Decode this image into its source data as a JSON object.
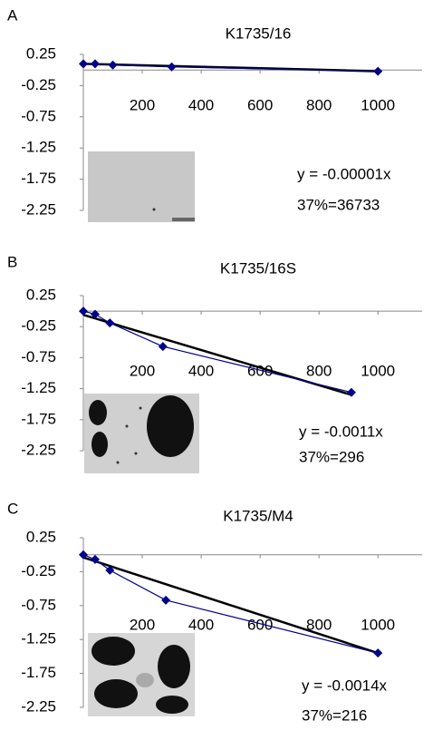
{
  "chart_data": [
    {
      "type": "line",
      "panel_label": "A",
      "title": "K1735/16",
      "x": [
        0,
        40,
        100,
        300,
        1000
      ],
      "series": [
        {
          "color": "#00008b",
          "values": [
            0.1,
            0.1,
            0.08,
            0.05,
            -0.02
          ]
        }
      ],
      "trendline": {
        "color": "#000000",
        "x": [
          0,
          1000
        ],
        "values": [
          0.1,
          -0.02
        ]
      },
      "annotations": [
        "y = -0.00001x",
        "37%=36733"
      ],
      "xlim": [
        0,
        1150
      ],
      "xticks": [
        200,
        400,
        600,
        800,
        1000
      ],
      "ylim": [
        -2.25,
        0.25
      ],
      "yticks": [
        0.25,
        -0.25,
        -0.75,
        -1.25,
        -1.75,
        -2.25
      ]
    },
    {
      "type": "line",
      "panel_label": "B",
      "title": "K1735/16S",
      "x": [
        0,
        40,
        90,
        270,
        910
      ],
      "series": [
        {
          "color": "#00008b",
          "values": [
            0.0,
            -0.05,
            -0.19,
            -0.57,
            -1.31
          ]
        }
      ],
      "trendline": {
        "color": "#000000",
        "x": [
          0,
          910
        ],
        "values": [
          -0.06,
          -1.35
        ]
      },
      "annotations": [
        "y = -0.0011x",
        "37%=296"
      ],
      "xlim": [
        0,
        1150
      ],
      "xticks": [
        200,
        400,
        600,
        800,
        1000
      ],
      "ylim": [
        -2.25,
        0.25
      ],
      "yticks": [
        0.25,
        -0.25,
        -0.75,
        -1.25,
        -1.75,
        -2.25
      ]
    },
    {
      "type": "line",
      "panel_label": "C",
      "title": "K1735/M4",
      "x": [
        0,
        40,
        90,
        280,
        1000
      ],
      "series": [
        {
          "color": "#00008b",
          "values": [
            0.0,
            -0.07,
            -0.23,
            -0.67,
            -1.45
          ]
        }
      ],
      "trendline": {
        "color": "#000000",
        "x": [
          0,
          1000
        ],
        "values": [
          -0.04,
          -1.45
        ]
      },
      "annotations": [
        "y = -0.0014x",
        "37%=216"
      ],
      "xlim": [
        0,
        1150
      ],
      "xticks": [
        200,
        400,
        600,
        800,
        1000
      ],
      "ylim": [
        -2.25,
        0.25
      ],
      "yticks": [
        0.25,
        -0.25,
        -0.75,
        -1.25,
        -1.75,
        -2.25
      ]
    }
  ]
}
